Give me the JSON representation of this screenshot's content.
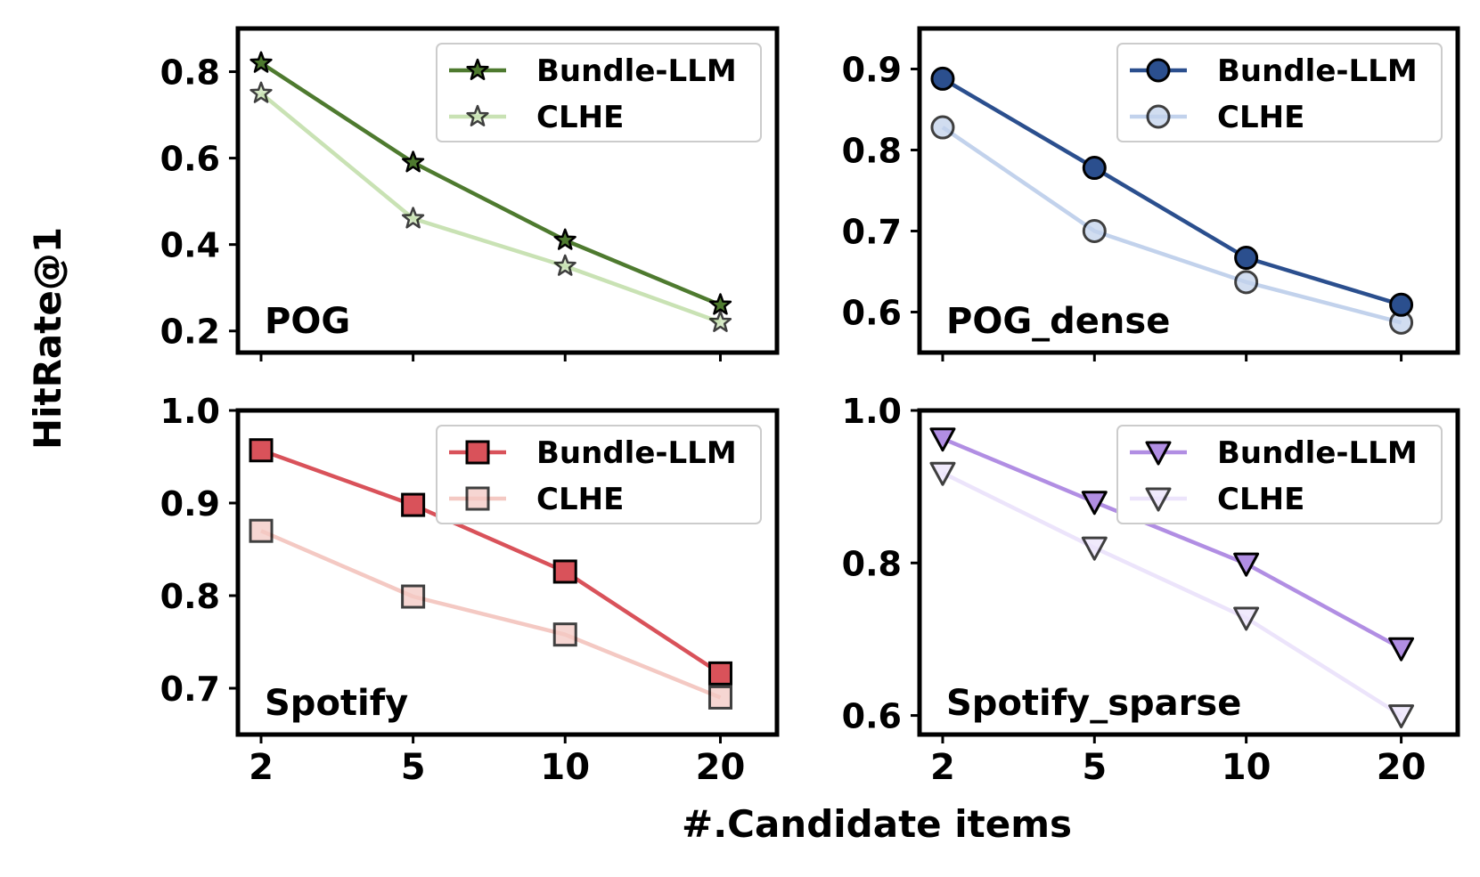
{
  "figure": {
    "ylabel": "HitRate@1",
    "xlabel": "#.Candidate items"
  },
  "chart_data": [
    {
      "type": "line",
      "title": "POG",
      "x": [
        2,
        5,
        10,
        20
      ],
      "xticklabels": [
        "2",
        "5",
        "10",
        "20"
      ],
      "ylim": [
        0.15,
        0.9
      ],
      "yticks": [
        0.2,
        0.4,
        0.6,
        0.8
      ],
      "yticklabels": [
        "0.2",
        "0.4",
        "0.6",
        "0.8"
      ],
      "marker": "star",
      "legend_position": "top-right",
      "series": [
        {
          "name": "Bundle-LLM",
          "values": [
            0.82,
            0.59,
            0.41,
            0.26
          ],
          "color": "#4e7a2f"
        },
        {
          "name": "CLHE",
          "values": [
            0.75,
            0.46,
            0.35,
            0.22
          ],
          "color": "#c9e2b4"
        }
      ]
    },
    {
      "type": "line",
      "title": "POG_dense",
      "x": [
        2,
        5,
        10,
        20
      ],
      "xticklabels": [
        "2",
        "5",
        "10",
        "20"
      ],
      "ylim": [
        0.55,
        0.95
      ],
      "yticks": [
        0.6,
        0.7,
        0.8,
        0.9
      ],
      "yticklabels": [
        "0.6",
        "0.7",
        "0.8",
        "0.9"
      ],
      "marker": "circle",
      "legend_position": "top-right",
      "series": [
        {
          "name": "Bundle-LLM",
          "values": [
            0.888,
            0.778,
            0.667,
            0.609
          ],
          "color": "#2b4f8e"
        },
        {
          "name": "CLHE",
          "values": [
            0.828,
            0.7,
            0.637,
            0.587
          ],
          "color": "#c2d2ec"
        }
      ]
    },
    {
      "type": "line",
      "title": "Spotify",
      "x": [
        2,
        5,
        10,
        20
      ],
      "xticklabels": [
        "2",
        "5",
        "10",
        "20"
      ],
      "ylim": [
        0.65,
        1.0
      ],
      "yticks": [
        0.7,
        0.8,
        0.9,
        1.0
      ],
      "yticklabels": [
        "0.7",
        "0.8",
        "0.9",
        "1.0"
      ],
      "marker": "square",
      "legend_position": "top-right",
      "series": [
        {
          "name": "Bundle-LLM",
          "values": [
            0.957,
            0.898,
            0.826,
            0.716
          ],
          "color": "#d9525a"
        },
        {
          "name": "CLHE",
          "values": [
            0.87,
            0.799,
            0.758,
            0.69
          ],
          "color": "#f4c9c3"
        }
      ]
    },
    {
      "type": "line",
      "title": "Spotify_sparse",
      "x": [
        2,
        5,
        10,
        20
      ],
      "xticklabels": [
        "2",
        "5",
        "10",
        "20"
      ],
      "ylim": [
        0.575,
        1.0
      ],
      "yticks": [
        0.6,
        0.8,
        1.0
      ],
      "yticklabels": [
        "0.6",
        "0.8",
        "1.0"
      ],
      "marker": "triangle-down",
      "legend_position": "top-right",
      "series": [
        {
          "name": "Bundle-LLM",
          "values": [
            0.963,
            0.88,
            0.799,
            0.688
          ],
          "color": "#b18ee3"
        },
        {
          "name": "CLHE",
          "values": [
            0.918,
            0.82,
            0.728,
            0.6
          ],
          "color": "#ece4fb"
        }
      ]
    }
  ]
}
